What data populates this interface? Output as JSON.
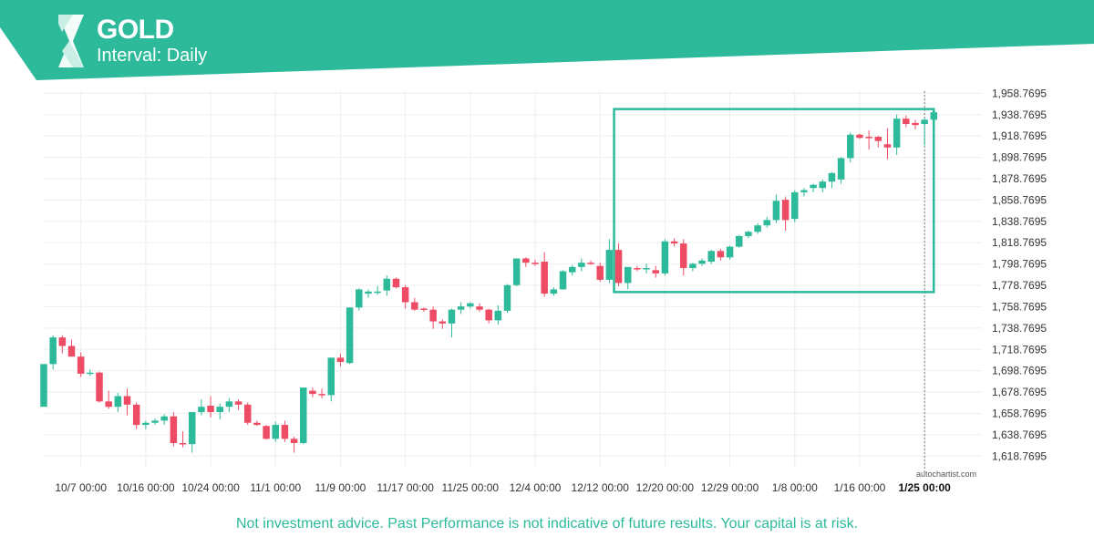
{
  "header": {
    "title": "GOLD",
    "interval": "Interval: Daily"
  },
  "watermark": "autochartist.com",
  "disclaimer": "Not investment advice. Past Performance is not indicative of future results. Your capital is at risk.",
  "colors": {
    "brand": "#2cba9a",
    "up": "#2cba9a",
    "down": "#ee4c65",
    "grid": "#eeeeee",
    "pattern_box": "#2cba9a"
  },
  "chart_data": {
    "type": "candlestick",
    "instrument": "GOLD",
    "interval": "Daily",
    "ylim": [
      1608.7695,
      1960.7695
    ],
    "y_ticks": [
      "1,958.7695",
      "1,938.7695",
      "1,918.7695",
      "1,898.7695",
      "1,878.7695",
      "1,858.7695",
      "1,838.7695",
      "1,818.7695",
      "1,798.7695",
      "1,778.7695",
      "1,758.7695",
      "1,738.7695",
      "1,718.7695",
      "1,698.7695",
      "1,678.7695",
      "1,658.7695",
      "1,638.7695",
      "1,618.7695"
    ],
    "y_tick_values": [
      1958.7695,
      1938.7695,
      1918.7695,
      1898.7695,
      1878.7695,
      1858.7695,
      1838.7695,
      1818.7695,
      1798.7695,
      1778.7695,
      1758.7695,
      1738.7695,
      1718.7695,
      1698.7695,
      1678.7695,
      1658.7695,
      1638.7695,
      1618.7695
    ],
    "x_ticks": [
      {
        "label": "10/7 00:00",
        "index": 4
      },
      {
        "label": "10/16 00:00",
        "index": 11
      },
      {
        "label": "10/24 00:00",
        "index": 18
      },
      {
        "label": "11/1 00:00",
        "index": 25
      },
      {
        "label": "11/9 00:00",
        "index": 32
      },
      {
        "label": "11/17 00:00",
        "index": 39
      },
      {
        "label": "11/25 00:00",
        "index": 46
      },
      {
        "label": "12/4 00:00",
        "index": 53
      },
      {
        "label": "12/12 00:00",
        "index": 60
      },
      {
        "label": "12/20 00:00",
        "index": 67
      },
      {
        "label": "12/29 00:00",
        "index": 74
      },
      {
        "label": "1/8 00:00",
        "index": 81
      },
      {
        "label": "1/16 00:00",
        "index": 88
      },
      {
        "label": "1/25 00:00",
        "index": 95,
        "bold": true
      }
    ],
    "current_index": 95,
    "pattern_box": {
      "start_index": 62,
      "end_index": 95.5,
      "high": 1944,
      "low": 1772.5
    },
    "candles": [
      [
        1665,
        1705,
        1665,
        1705
      ],
      [
        1705,
        1732,
        1700,
        1730
      ],
      [
        1730,
        1732,
        1715,
        1722
      ],
      [
        1722,
        1728,
        1712,
        1712
      ],
      [
        1712,
        1716,
        1693,
        1696
      ],
      [
        1697,
        1700,
        1694,
        1697
      ],
      [
        1697,
        1698,
        1669,
        1670
      ],
      [
        1670,
        1680,
        1663,
        1665
      ],
      [
        1665,
        1678,
        1660,
        1675
      ],
      [
        1675,
        1682,
        1657,
        1667
      ],
      [
        1667,
        1669,
        1644,
        1648
      ],
      [
        1648,
        1652,
        1644,
        1650
      ],
      [
        1650,
        1654,
        1648,
        1652
      ],
      [
        1652,
        1658,
        1648,
        1656
      ],
      [
        1656,
        1660,
        1628,
        1631
      ],
      [
        1631,
        1642,
        1627,
        1630
      ],
      [
        1630,
        1660,
        1622,
        1660
      ],
      [
        1660,
        1672,
        1657,
        1665
      ],
      [
        1666,
        1675,
        1655,
        1660
      ],
      [
        1660,
        1668,
        1653,
        1665
      ],
      [
        1665,
        1673,
        1660,
        1670
      ],
      [
        1670,
        1672,
        1662,
        1667
      ],
      [
        1667,
        1669,
        1648,
        1650
      ],
      [
        1650,
        1652,
        1647,
        1648
      ],
      [
        1647,
        1648,
        1634,
        1635
      ],
      [
        1635,
        1651,
        1632,
        1648
      ],
      [
        1648,
        1652,
        1632,
        1635
      ],
      [
        1635,
        1637,
        1622,
        1631
      ],
      [
        1631,
        1683,
        1630,
        1683
      ],
      [
        1680,
        1683,
        1674,
        1677
      ],
      [
        1677,
        1682,
        1673,
        1676
      ],
      [
        1676,
        1711,
        1670,
        1711
      ],
      [
        1711,
        1715,
        1703,
        1707
      ],
      [
        1706,
        1758,
        1705,
        1758
      ],
      [
        1758,
        1776,
        1755,
        1775
      ],
      [
        1771,
        1775,
        1767,
        1773
      ],
      [
        1773,
        1778,
        1770,
        1773
      ],
      [
        1774,
        1788,
        1769,
        1785
      ],
      [
        1785,
        1786,
        1776,
        1777
      ],
      [
        1777,
        1779,
        1757,
        1763
      ],
      [
        1763,
        1767,
        1755,
        1756
      ],
      [
        1757,
        1758,
        1754,
        1756
      ],
      [
        1756,
        1759,
        1738,
        1745
      ],
      [
        1745,
        1747,
        1738,
        1743
      ],
      [
        1743,
        1757,
        1730,
        1756
      ],
      [
        1756,
        1763,
        1752,
        1759
      ],
      [
        1759,
        1763,
        1757,
        1762
      ],
      [
        1759,
        1762,
        1754,
        1756
      ],
      [
        1756,
        1757,
        1743,
        1746
      ],
      [
        1746,
        1760,
        1742,
        1755
      ],
      [
        1755,
        1780,
        1753,
        1779
      ],
      [
        1779,
        1804,
        1778,
        1804
      ],
      [
        1804,
        1805,
        1796,
        1800
      ],
      [
        1800,
        1803,
        1797,
        1799
      ],
      [
        1801,
        1810,
        1768,
        1771
      ],
      [
        1771,
        1777,
        1769,
        1775
      ],
      [
        1775,
        1793,
        1775,
        1792
      ],
      [
        1791,
        1798,
        1788,
        1796
      ],
      [
        1796,
        1804,
        1792,
        1800
      ],
      [
        1800,
        1802,
        1798,
        1799
      ],
      [
        1797,
        1800,
        1782,
        1784
      ],
      [
        1784,
        1822,
        1781,
        1812
      ],
      [
        1812,
        1818,
        1778,
        1781
      ],
      [
        1781,
        1796,
        1775,
        1796
      ],
      [
        1795,
        1797,
        1792,
        1794
      ],
      [
        1794,
        1799,
        1790,
        1795
      ],
      [
        1793,
        1797,
        1786,
        1790
      ],
      [
        1790,
        1822,
        1788,
        1820
      ],
      [
        1820,
        1823,
        1815,
        1818
      ],
      [
        1818,
        1822,
        1788,
        1795
      ],
      [
        1795,
        1800,
        1792,
        1799
      ],
      [
        1799,
        1804,
        1797,
        1802
      ],
      [
        1801,
        1812,
        1799,
        1811
      ],
      [
        1811,
        1813,
        1802,
        1805
      ],
      [
        1805,
        1816,
        1803,
        1815
      ],
      [
        1815,
        1826,
        1814,
        1825
      ],
      [
        1825,
        1830,
        1823,
        1829
      ],
      [
        1829,
        1837,
        1827,
        1835
      ],
      [
        1835,
        1843,
        1833,
        1840
      ],
      [
        1840,
        1864,
        1837,
        1858
      ],
      [
        1859,
        1862,
        1830,
        1840
      ],
      [
        1841,
        1868,
        1838,
        1866
      ],
      [
        1866,
        1870,
        1862,
        1868
      ],
      [
        1870,
        1874,
        1866,
        1873
      ],
      [
        1870,
        1878,
        1866,
        1876
      ],
      [
        1876,
        1885,
        1870,
        1884
      ],
      [
        1878,
        1899,
        1874,
        1898
      ],
      [
        1898,
        1922,
        1894,
        1920
      ],
      [
        1920,
        1921,
        1916,
        1917
      ],
      [
        1918,
        1924,
        1906,
        1917
      ],
      [
        1918,
        1919,
        1908,
        1914
      ],
      [
        1911,
        1926,
        1897,
        1908
      ],
      [
        1908,
        1939,
        1901,
        1935
      ],
      [
        1935,
        1938,
        1927,
        1930
      ],
      [
        1931,
        1934,
        1925,
        1929
      ],
      [
        1930,
        1936,
        1910,
        1934
      ],
      [
        1934,
        1944,
        1930,
        1941
      ]
    ]
  }
}
